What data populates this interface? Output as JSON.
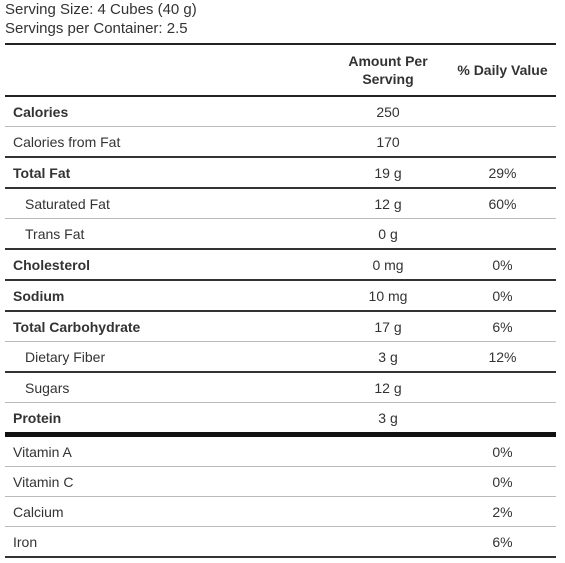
{
  "serving": {
    "size": "Serving Size: 4 Cubes (40 g)",
    "per_container": "Servings per Container: 2.5"
  },
  "table": {
    "headers": {
      "amount": "Amount Per Serving",
      "daily_value": "% Daily Value"
    },
    "nutrients": [
      {
        "name": "Calories",
        "amount": "250",
        "dv": ""
      },
      {
        "name": "Calories from Fat",
        "amount": "170",
        "dv": ""
      },
      {
        "name": "Total Fat",
        "amount": "19 g",
        "dv": "29%"
      },
      {
        "name": "Saturated Fat",
        "amount": "12 g",
        "dv": "60%"
      },
      {
        "name": "Trans Fat",
        "amount": "0 g",
        "dv": ""
      },
      {
        "name": "Cholesterol",
        "amount": "0 mg",
        "dv": "0%"
      },
      {
        "name": "Sodium",
        "amount": "10 mg",
        "dv": "0%"
      },
      {
        "name": "Total Carbohydrate",
        "amount": "17 g",
        "dv": "6%"
      },
      {
        "name": "Dietary Fiber",
        "amount": "3 g",
        "dv": "12%"
      },
      {
        "name": "Sugars",
        "amount": "12 g",
        "dv": ""
      },
      {
        "name": "Protein",
        "amount": "3 g",
        "dv": ""
      }
    ],
    "vitamins": [
      {
        "name": "Vitamin A",
        "dv": "0%"
      },
      {
        "name": "Vitamin C",
        "dv": "0%"
      },
      {
        "name": "Calcium",
        "dv": "2%"
      },
      {
        "name": "Iron",
        "dv": "6%"
      }
    ]
  }
}
